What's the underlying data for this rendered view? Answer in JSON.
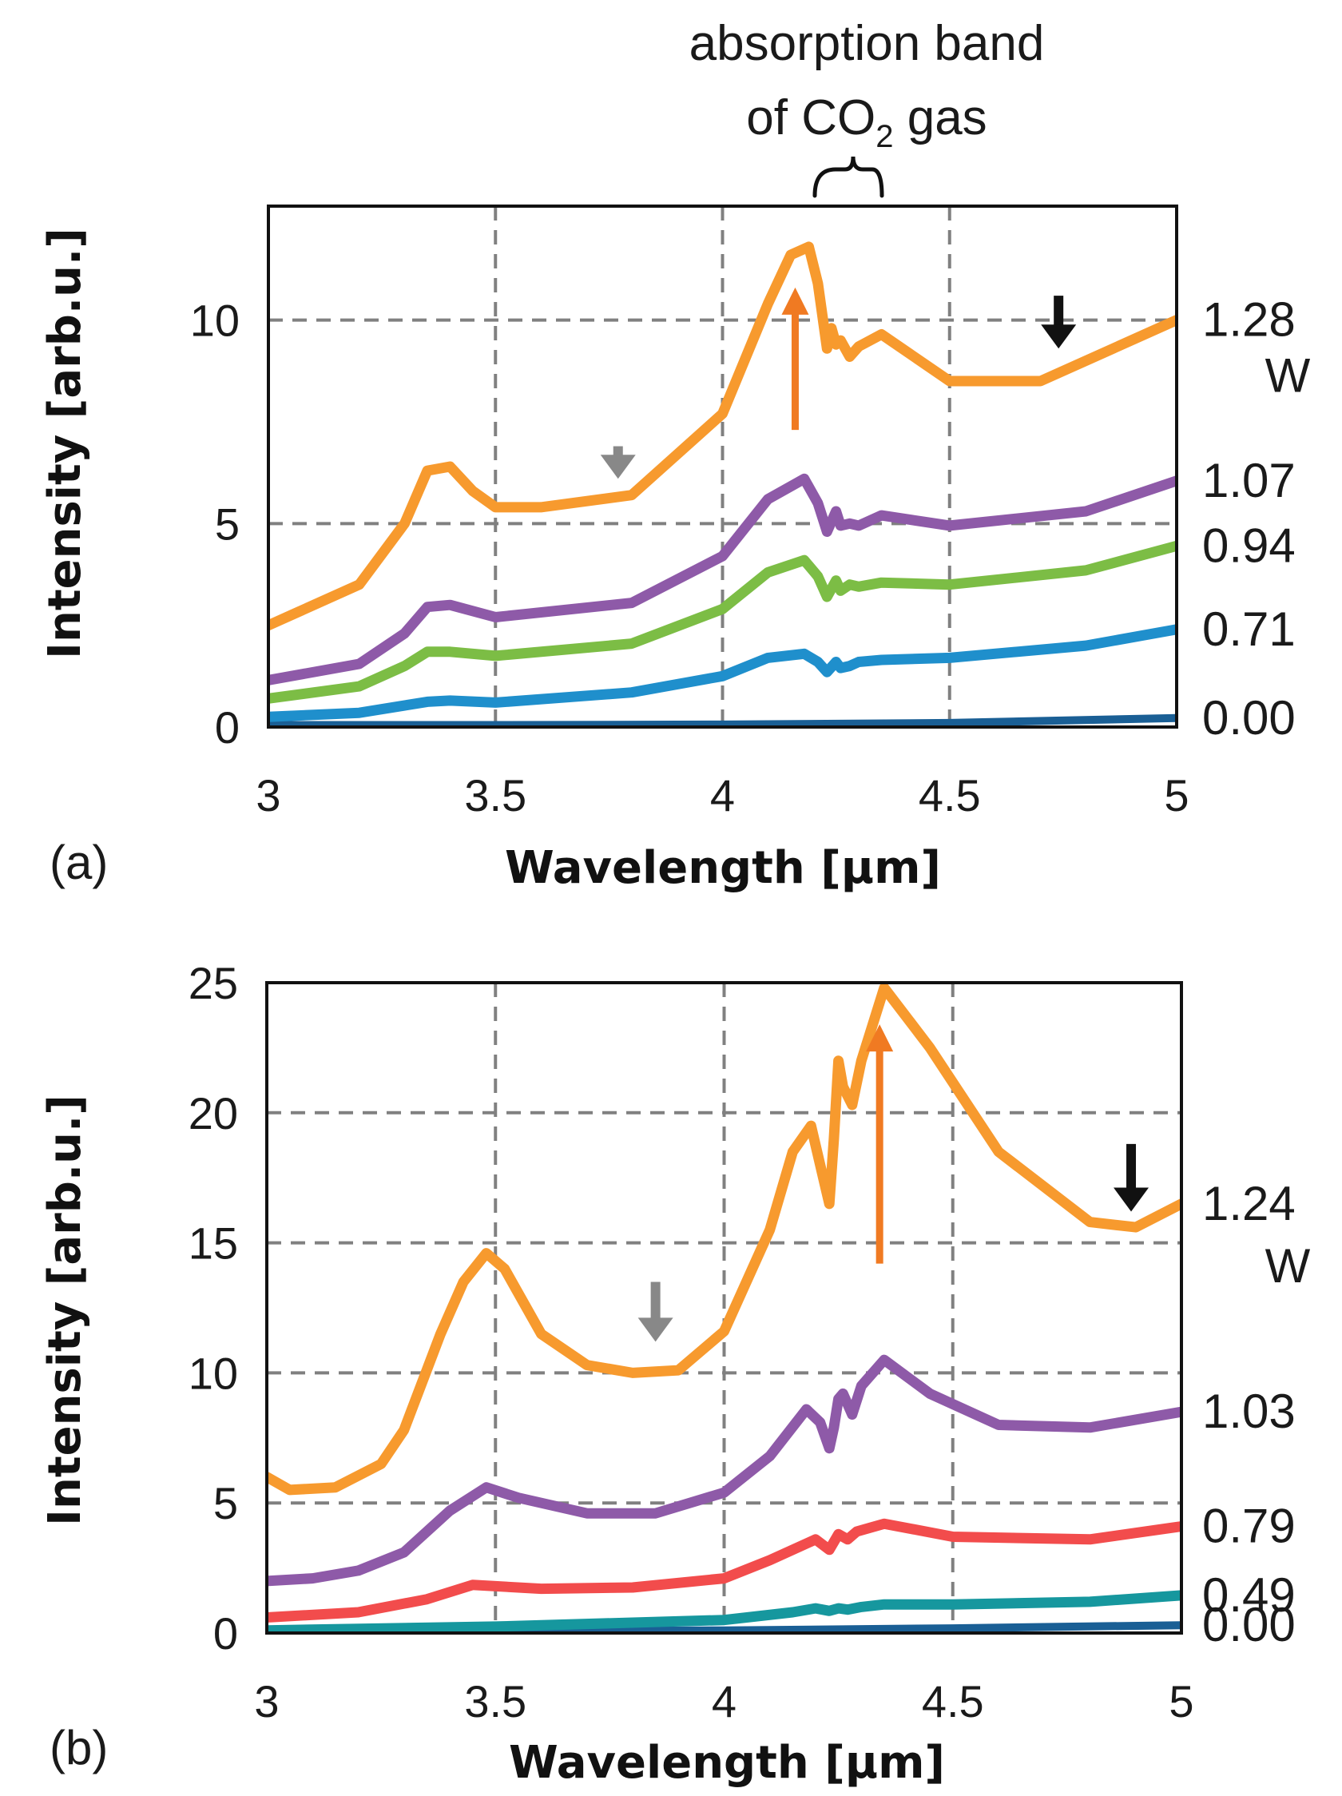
{
  "chart_data": [
    {
      "type": "line",
      "panel_label": "(a)",
      "xlabel": "Wavelength [μm]",
      "ylabel": "Intensity [arb.u.]",
      "xlim": [
        3,
        5
      ],
      "ylim": [
        0,
        12.8
      ],
      "xticks": [
        3,
        3.5,
        4,
        4.5,
        5
      ],
      "xtick_labels": [
        "3",
        "3.5",
        "4",
        "4.5",
        "5"
      ],
      "yticks": [
        0,
        5,
        10
      ],
      "ytick_labels": [
        "0",
        "5",
        "10"
      ],
      "grid": true,
      "annotation": {
        "text_line1": "absorption band",
        "text_line2_prefix": "of CO",
        "text_line2_subscript": "2",
        "text_line2_suffix": " gas",
        "brace_x_range": [
          4.2,
          4.36
        ]
      },
      "unit_label": "W",
      "series": [
        {
          "name": "0.00",
          "color": "#1a5f95",
          "x": [
            3,
            3.5,
            4,
            4.5,
            5
          ],
          "values": [
            0.05,
            0.05,
            0.06,
            0.1,
            0.22
          ]
        },
        {
          "name": "0.71",
          "color": "#1f8fcc",
          "x": [
            3,
            3.2,
            3.35,
            3.4,
            3.5,
            3.8,
            4.0,
            4.1,
            4.18,
            4.21,
            4.23,
            4.25,
            4.26,
            4.28,
            4.3,
            4.35,
            4.5,
            4.8,
            5.0
          ],
          "values": [
            0.25,
            0.35,
            0.62,
            0.65,
            0.6,
            0.85,
            1.25,
            1.7,
            1.8,
            1.6,
            1.35,
            1.6,
            1.45,
            1.5,
            1.6,
            1.65,
            1.7,
            2.0,
            2.4
          ]
        },
        {
          "name": "0.94",
          "color": "#7cbd45",
          "x": [
            3,
            3.2,
            3.3,
            3.35,
            3.4,
            3.5,
            3.8,
            4.0,
            4.1,
            4.18,
            4.21,
            4.23,
            4.25,
            4.26,
            4.28,
            4.3,
            4.35,
            4.5,
            4.8,
            5.0
          ],
          "values": [
            0.7,
            1.0,
            1.5,
            1.85,
            1.85,
            1.75,
            2.05,
            2.9,
            3.8,
            4.1,
            3.7,
            3.2,
            3.6,
            3.35,
            3.5,
            3.45,
            3.55,
            3.5,
            3.85,
            4.45
          ]
        },
        {
          "name": "1.07",
          "color": "#8e5aa8",
          "x": [
            3,
            3.2,
            3.3,
            3.35,
            3.4,
            3.5,
            3.8,
            4.0,
            4.1,
            4.18,
            4.21,
            4.23,
            4.25,
            4.26,
            4.28,
            4.3,
            4.35,
            4.5,
            4.8,
            5.0
          ],
          "values": [
            1.15,
            1.55,
            2.3,
            2.95,
            3.0,
            2.7,
            3.05,
            4.2,
            5.6,
            6.1,
            5.5,
            4.8,
            5.3,
            4.95,
            5.0,
            4.95,
            5.2,
            4.95,
            5.3,
            6.05
          ]
        },
        {
          "name": "1.28",
          "color": "#f79a2e",
          "x": [
            3,
            3.2,
            3.3,
            3.35,
            3.4,
            3.45,
            3.5,
            3.6,
            3.8,
            4.0,
            4.1,
            4.15,
            4.19,
            4.21,
            4.23,
            4.24,
            4.25,
            4.26,
            4.28,
            4.3,
            4.35,
            4.5,
            4.7,
            5.0
          ],
          "values": [
            2.5,
            3.5,
            5.0,
            6.3,
            6.4,
            5.8,
            5.4,
            5.4,
            5.7,
            7.7,
            10.4,
            11.6,
            11.8,
            10.9,
            9.3,
            9.8,
            9.4,
            9.5,
            9.1,
            9.35,
            9.65,
            8.5,
            8.5,
            10.0
          ]
        }
      ],
      "arrows": [
        {
          "x": 4.16,
          "from": 7.3,
          "to": 10.8,
          "direction": "up",
          "color": "#f07a22"
        },
        {
          "x": 3.77,
          "from": 6.9,
          "to": 6.1,
          "direction": "down",
          "color": "#888888"
        },
        {
          "x": 4.74,
          "from": 10.6,
          "to": 9.3,
          "direction": "down",
          "color": "#111111"
        }
      ]
    },
    {
      "type": "line",
      "panel_label": "(b)",
      "xlabel": "Wavelength [μm]",
      "ylabel": "Intensity [arb.u.]",
      "xlim": [
        3,
        5
      ],
      "ylim": [
        0,
        25
      ],
      "xticks": [
        3,
        3.5,
        4,
        4.5,
        5
      ],
      "xtick_labels": [
        "3",
        "3.5",
        "4",
        "4.5",
        "5"
      ],
      "yticks": [
        0,
        5,
        10,
        15,
        20,
        25
      ],
      "ytick_labels": [
        "0",
        "5",
        "10",
        "15",
        "20",
        "25"
      ],
      "grid": true,
      "unit_label": "W",
      "series": [
        {
          "name": "0.00",
          "color": "#1a5f95",
          "x": [
            3,
            3.5,
            4,
            4.5,
            5
          ],
          "values": [
            0.05,
            0.07,
            0.1,
            0.18,
            0.3
          ]
        },
        {
          "name": "0.49",
          "color": "#16979e",
          "x": [
            3,
            3.5,
            4,
            4.15,
            4.2,
            4.23,
            4.25,
            4.27,
            4.3,
            4.35,
            4.5,
            4.8,
            5.0
          ],
          "values": [
            0.1,
            0.25,
            0.5,
            0.8,
            0.95,
            0.85,
            0.95,
            0.9,
            1.0,
            1.1,
            1.1,
            1.2,
            1.45
          ]
        },
        {
          "name": "0.79",
          "color": "#f24c4c",
          "x": [
            3,
            3.2,
            3.35,
            3.45,
            3.5,
            3.6,
            3.8,
            4.0,
            4.1,
            4.2,
            4.23,
            4.25,
            4.27,
            4.29,
            4.35,
            4.5,
            4.8,
            5.0
          ],
          "values": [
            0.6,
            0.8,
            1.3,
            1.85,
            1.8,
            1.7,
            1.75,
            2.1,
            2.8,
            3.6,
            3.2,
            3.8,
            3.6,
            3.9,
            4.2,
            3.7,
            3.6,
            4.1
          ]
        },
        {
          "name": "1.03",
          "color": "#8e5aa8",
          "x": [
            3,
            3.1,
            3.2,
            3.3,
            3.4,
            3.48,
            3.55,
            3.7,
            3.85,
            4.0,
            4.1,
            4.18,
            4.21,
            4.23,
            4.24,
            4.25,
            4.26,
            4.28,
            4.3,
            4.35,
            4.45,
            4.6,
            4.8,
            5.0
          ],
          "values": [
            2.0,
            2.1,
            2.4,
            3.1,
            4.7,
            5.6,
            5.2,
            4.6,
            4.6,
            5.4,
            6.8,
            8.6,
            8.1,
            7.1,
            7.9,
            9.0,
            9.2,
            8.4,
            9.5,
            10.5,
            9.2,
            8.0,
            7.9,
            8.5
          ]
        },
        {
          "name": "1.24",
          "color": "#f79a2e",
          "x": [
            3,
            3.05,
            3.15,
            3.25,
            3.3,
            3.38,
            3.43,
            3.48,
            3.52,
            3.6,
            3.7,
            3.8,
            3.9,
            4.0,
            4.1,
            4.15,
            4.19,
            4.21,
            4.23,
            4.24,
            4.25,
            4.26,
            4.28,
            4.3,
            4.35,
            4.45,
            4.6,
            4.8,
            4.9,
            5.0
          ],
          "values": [
            6.0,
            5.5,
            5.6,
            6.5,
            7.8,
            11.5,
            13.5,
            14.6,
            14.0,
            11.5,
            10.3,
            10.0,
            10.1,
            11.6,
            15.5,
            18.5,
            19.5,
            18.0,
            16.5,
            19.0,
            22.0,
            21.0,
            20.3,
            22.0,
            24.8,
            22.5,
            18.5,
            15.8,
            15.6,
            16.5
          ]
        }
      ],
      "arrows": [
        {
          "x": 4.34,
          "from": 14.2,
          "to": 23.4,
          "direction": "up",
          "color": "#f07a22"
        },
        {
          "x": 3.85,
          "from": 13.5,
          "to": 11.2,
          "direction": "down",
          "color": "#888888"
        },
        {
          "x": 4.89,
          "from": 18.8,
          "to": 16.2,
          "direction": "down",
          "color": "#111111"
        }
      ]
    }
  ]
}
